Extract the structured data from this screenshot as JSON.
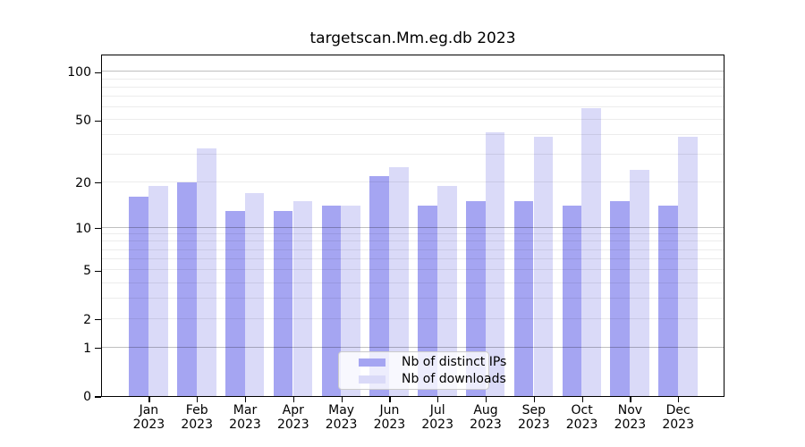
{
  "title": "targetscan.Mm.eg.db 2023",
  "legend": {
    "items": [
      {
        "label": "Nb of distinct IPs",
        "color": "#a5a5f2"
      },
      {
        "label": "Nb of downloads",
        "color": "#dadaf8"
      }
    ]
  },
  "chart_data": {
    "type": "bar",
    "title": "targetscan.Mm.eg.db 2023",
    "categories": [
      "Jan",
      "Feb",
      "Mar",
      "Apr",
      "May",
      "Jun",
      "Jul",
      "Aug",
      "Sep",
      "Oct",
      "Nov",
      "Dec"
    ],
    "year_label": "2023",
    "series": [
      {
        "name": "Nb of distinct IPs",
        "color": "#a5a5f2",
        "values": [
          16,
          20,
          13,
          13,
          14,
          22,
          14,
          15,
          15,
          14,
          15,
          14
        ]
      },
      {
        "name": "Nb of downloads",
        "color": "#dadaf8",
        "values": [
          19,
          33,
          17,
          15,
          14,
          25,
          19,
          42,
          39,
          59,
          24,
          39
        ]
      }
    ],
    "xlabel": "",
    "ylabel": "",
    "yscale": "log1p",
    "ylim": [
      0,
      130
    ],
    "yticks": [
      0,
      1,
      2,
      5,
      10,
      20,
      50,
      100
    ],
    "gridlines_major": [
      1,
      10,
      100
    ],
    "gridlines_minor": [
      2,
      3,
      4,
      5,
      6,
      7,
      8,
      9,
      20,
      30,
      40,
      50,
      60,
      70,
      80,
      90
    ],
    "grid": true,
    "legend_position": "bottom-center"
  }
}
